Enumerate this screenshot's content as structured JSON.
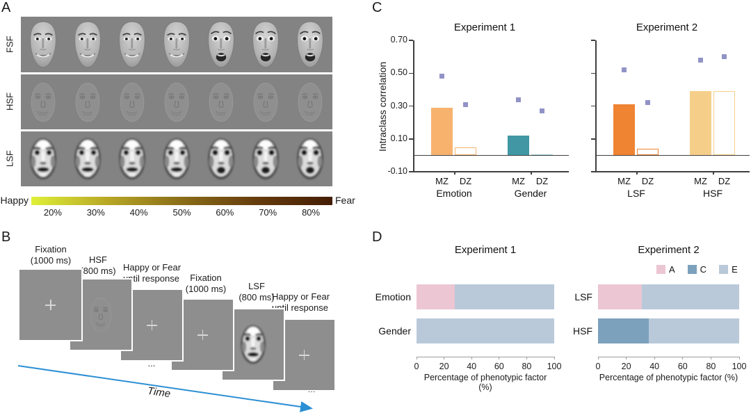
{
  "panels": {
    "a": {
      "label": "A",
      "rows": [
        {
          "label": "FSF"
        },
        {
          "label": "HSF"
        },
        {
          "label": "LSF"
        }
      ],
      "gradient": {
        "left_label": "Happy",
        "right_label": "Fear",
        "ticks": [
          "20%",
          "30%",
          "40%",
          "50%",
          "60%",
          "70%",
          "80%"
        ],
        "colors": [
          "#dff039",
          "#b8a826",
          "#8a6d18",
          "#653c0c",
          "#441d05"
        ]
      }
    },
    "b": {
      "label": "B",
      "cards": [
        {
          "title_line1": "Fixation",
          "title_line2": "(1000 ms)"
        },
        {
          "title_line1": "HSF",
          "title_line2": "(800 ms)"
        },
        {
          "title_line1": "Happy or Fear",
          "title_line2": "until response"
        },
        {
          "title_line1": "Fixation",
          "title_line2": "(1000 ms)"
        },
        {
          "title_line1": "LSF",
          "title_line2": "(800 ms)"
        },
        {
          "title_line1": "Happy or Fear",
          "title_line2": "until response"
        }
      ],
      "ellipsis": "...",
      "time_label": "Time",
      "arrow_color": "#2b8fd4"
    },
    "c": {
      "label": "C"
    },
    "d": {
      "label": "D"
    }
  },
  "ace_colors": {
    "A": "#ecc6d3",
    "C": "#7ba1bd",
    "E": "#b9c9d9"
  },
  "chart_data": [
    {
      "id": "icc_experiment1",
      "type": "bar",
      "title": "Experiment 1",
      "ylabel": "Intraclass correlation",
      "ylim": [
        -0.1,
        0.7
      ],
      "yticks": [
        0.7,
        0.5,
        0.3,
        0.1,
        -0.1
      ],
      "marker_color": "#9193c6",
      "groups": [
        {
          "label": "Emotion",
          "bars": [
            {
              "label": "MZ",
              "value": 0.29,
              "marker": 0.48,
              "style": "filled",
              "color": "#f7b36e"
            },
            {
              "label": "DZ",
              "value": 0.05,
              "marker": 0.31,
              "style": "outline",
              "color": "#f7b36e"
            }
          ]
        },
        {
          "label": "Gender",
          "bars": [
            {
              "label": "MZ",
              "value": 0.12,
              "marker": 0.34,
              "style": "filled",
              "color": "#4197a4"
            },
            {
              "label": "DZ",
              "value": 0.005,
              "marker": 0.27,
              "style": "filled",
              "color": "#9fd3d6"
            }
          ]
        }
      ]
    },
    {
      "id": "icc_experiment2",
      "type": "bar",
      "title": "Experiment 2",
      "ylim": [
        -0.1,
        0.7
      ],
      "yticks": [
        0.7,
        0.5,
        0.3,
        0.1,
        -0.1
      ],
      "marker_color": "#9193c6",
      "groups": [
        {
          "label": "LSF",
          "bars": [
            {
              "label": "MZ",
              "value": 0.31,
              "marker": 0.52,
              "style": "filled",
              "color": "#ef8432"
            },
            {
              "label": "DZ",
              "value": 0.04,
              "marker": 0.32,
              "style": "outline",
              "color": "#ef8432"
            }
          ]
        },
        {
          "label": "HSF",
          "bars": [
            {
              "label": "MZ",
              "value": 0.39,
              "marker": 0.58,
              "style": "filled",
              "color": "#f5cf8a"
            },
            {
              "label": "DZ",
              "value": 0.39,
              "marker": 0.6,
              "style": "outline",
              "color": "#f5cf8a"
            }
          ]
        }
      ]
    },
    {
      "id": "ace_experiment1",
      "type": "stacked-bar-horizontal",
      "title": "Experiment 1",
      "xlabel": "Percentage of phenotypic factor (%)",
      "xlim": [
        0,
        100
      ],
      "xticks": [
        0,
        20,
        40,
        60,
        80,
        100
      ],
      "rows": [
        {
          "label": "Emotion",
          "segments": [
            {
              "component": "A",
              "value": 28
            },
            {
              "component": "E",
              "value": 72
            }
          ]
        },
        {
          "label": "Gender",
          "segments": [
            {
              "component": "E",
              "value": 100
            }
          ]
        }
      ]
    },
    {
      "id": "ace_experiment2",
      "type": "stacked-bar-horizontal",
      "title": "Experiment 2",
      "xlabel": "Percentage of phenotypic factor (%)",
      "xlim": [
        0,
        100
      ],
      "xticks": [
        0,
        20,
        40,
        60,
        80,
        100
      ],
      "legend": [
        "A",
        "C",
        "E"
      ],
      "rows": [
        {
          "label": "LSF",
          "segments": [
            {
              "component": "A",
              "value": 31
            },
            {
              "component": "E",
              "value": 69
            }
          ]
        },
        {
          "label": "HSF",
          "segments": [
            {
              "component": "C",
              "value": 36
            },
            {
              "component": "E",
              "value": 64
            }
          ]
        }
      ]
    }
  ]
}
